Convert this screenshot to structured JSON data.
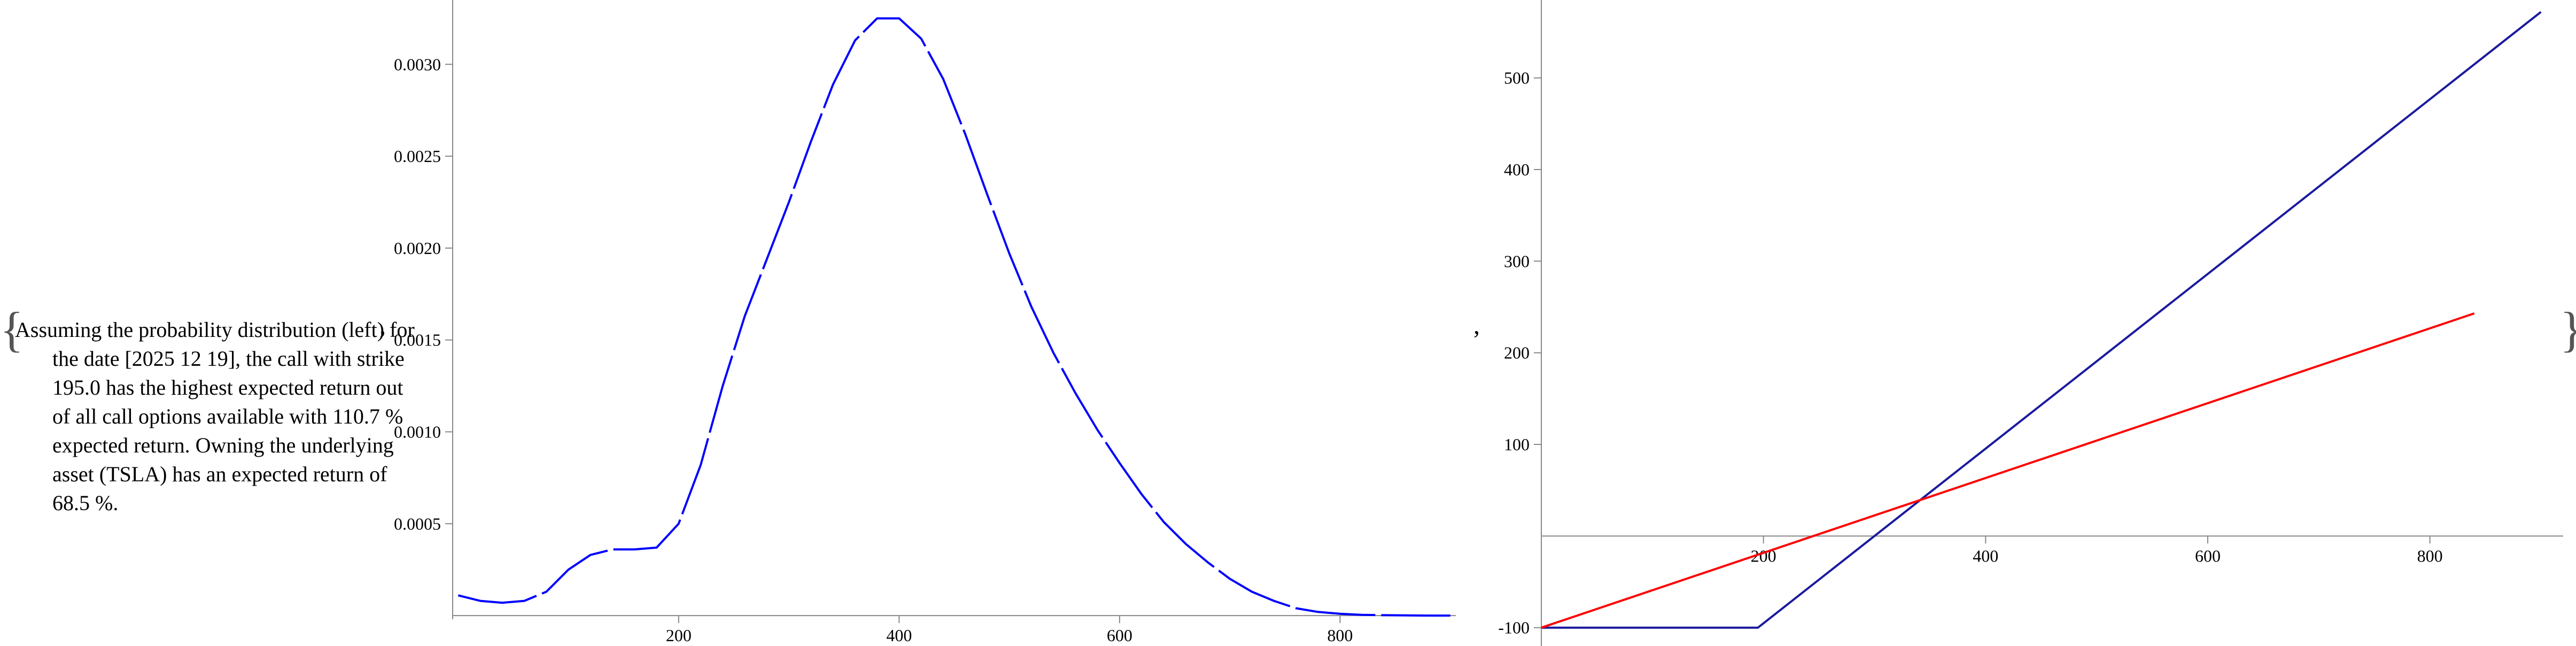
{
  "notebook": {
    "open_brace": "{",
    "close_brace": "}",
    "separator": ",",
    "description": "Assuming the probability distribution (left) for the date [2025 12 19], the call with strike 195.0 has the highest expected return out of all call options available with 110.7 % expected return. Owning the underlying asset (TSLA) has an expected return of 68.5 %."
  },
  "chart_data": [
    {
      "type": "line",
      "title": "",
      "xlabel": "",
      "ylabel": "",
      "xlim": [
        -5,
        905
      ],
      "ylim": [
        -2e-05,
        0.00335
      ],
      "x_ticks": [
        200,
        400,
        600,
        800
      ],
      "x_tick_labels": [
        "200",
        "400",
        "600",
        "800"
      ],
      "y_ticks": [
        0.0005,
        0.001,
        0.0015,
        0.002,
        0.0025,
        0.003
      ],
      "y_tick_labels": [
        "0.0005",
        "0.0010",
        "0.0015",
        "0.0020",
        "0.0025",
        "0.0030"
      ],
      "grid": false,
      "series": [
        {
          "color": "#0000ff",
          "style": "solid-with-small-gaps",
          "x": [
            0,
            20,
            40,
            60,
            80,
            100,
            120,
            140,
            160,
            180,
            200,
            220,
            240,
            260,
            280,
            300,
            320,
            340,
            360,
            380,
            400,
            420,
            440,
            460,
            480,
            500,
            520,
            540,
            560,
            580,
            600,
            620,
            640,
            660,
            680,
            700,
            720,
            740,
            760,
            780,
            800,
            820,
            840,
            860,
            880,
            900
          ],
          "y": [
            0.00011,
            8e-05,
            7e-05,
            8e-05,
            0.00013,
            0.00025,
            0.00033,
            0.00036,
            0.00036,
            0.00037,
            0.0005,
            0.00082,
            0.00125,
            0.00163,
            0.00194,
            0.00225,
            0.00258,
            0.00289,
            0.00313,
            0.00325,
            0.00325,
            0.00314,
            0.00292,
            0.00262,
            0.00229,
            0.00197,
            0.00168,
            0.00143,
            0.00121,
            0.00101,
            0.00083,
            0.00066,
            0.00051,
            0.00039,
            0.00029,
            0.0002,
            0.00013,
            8e-05,
            4e-05,
            2e-05,
            1e-05,
            4e-06,
            2e-06,
            1e-06,
            0.0,
            0.0
          ]
        }
      ]
    },
    {
      "type": "line",
      "title": "",
      "xlabel": "",
      "ylabel": "",
      "xlim": [
        0,
        920
      ],
      "ylim": [
        -120,
        585
      ],
      "x_ticks": [
        200,
        400,
        600,
        800
      ],
      "x_tick_labels": [
        "200",
        "400",
        "600",
        "800"
      ],
      "y_ticks": [
        -100,
        100,
        200,
        300,
        400,
        500
      ],
      "y_tick_labels": [
        "-100",
        "100",
        "200",
        "300",
        "400",
        "500"
      ],
      "grid": false,
      "series": [
        {
          "color": "#1a1a9e",
          "x": [
            0,
            195,
            900
          ],
          "y": [
            -100,
            -100,
            572
          ]
        },
        {
          "color": "#ff0000",
          "x": [
            0,
            840
          ],
          "y": [
            -100,
            243
          ]
        }
      ]
    }
  ]
}
